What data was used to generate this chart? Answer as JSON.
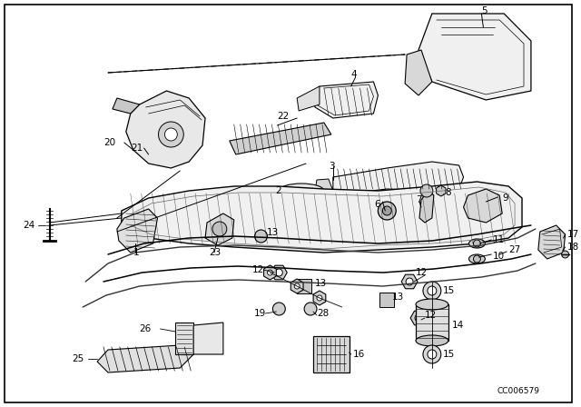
{
  "bg_color": "#ffffff",
  "diagram_code": "CC006579",
  "font_size": 7.5,
  "lw": 0.8
}
